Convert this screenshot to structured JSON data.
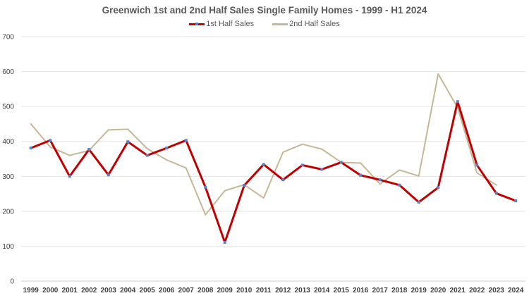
{
  "chart_data": {
    "type": "line",
    "title": "Greenwich 1st and 2nd Half Sales Single Family Homes - 1999 - H1 2024",
    "xlabel": "",
    "ylabel": "",
    "ylim": [
      0,
      700
    ],
    "yticks": [
      0,
      100,
      200,
      300,
      400,
      500,
      600,
      700
    ],
    "grid": true,
    "legend_position": "top-center",
    "categories": [
      "1999",
      "2000",
      "2001",
      "2002",
      "2003",
      "2004",
      "2005",
      "2006",
      "2007",
      "2008",
      "2009",
      "2010",
      "2011",
      "2012",
      "2013",
      "2014",
      "2015",
      "2016",
      "2017",
      "2018",
      "2019",
      "2020",
      "2021",
      "2022",
      "2023",
      "2024"
    ],
    "series": [
      {
        "name": "1st Half Sales",
        "color": "#c00000",
        "marker_color": "#5b7fbf",
        "values": [
          381,
          403,
          300,
          377,
          304,
          399,
          360,
          381,
          403,
          269,
          111,
          274,
          334,
          290,
          332,
          320,
          340,
          303,
          290,
          275,
          226,
          268,
          514,
          332,
          251,
          230
        ]
      },
      {
        "name": "2nd Half Sales",
        "color": "#c4b896",
        "values": [
          450,
          384,
          360,
          374,
          433,
          435,
          379,
          347,
          324,
          190,
          259,
          276,
          238,
          369,
          392,
          378,
          340,
          338,
          278,
          318,
          301,
          593,
          497,
          310,
          275,
          null
        ]
      }
    ]
  }
}
